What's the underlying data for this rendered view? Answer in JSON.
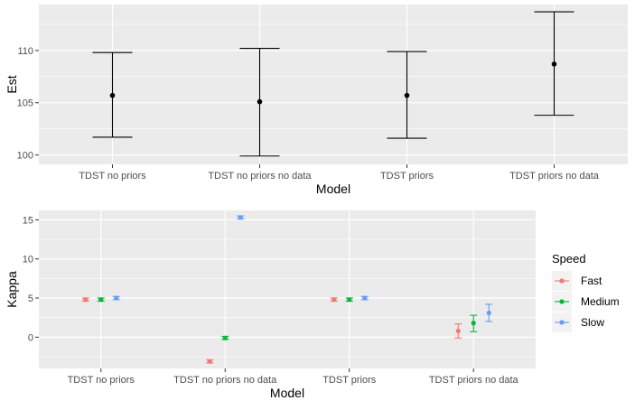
{
  "chart_data": [
    {
      "type": "errorbar",
      "categories": [
        "TDST no priors",
        "TDST no priors no data",
        "TDST priors",
        "TDST priors no data"
      ],
      "estimate": [
        105.7,
        105.1,
        105.7,
        108.7
      ],
      "lower": [
        101.7,
        99.9,
        101.6,
        103.8
      ],
      "upper": [
        109.8,
        110.2,
        109.9,
        113.7
      ],
      "xlabel": "Model",
      "ylabel": "Est",
      "ylim": [
        99.1,
        114.4
      ],
      "yticks": [
        100,
        105,
        110
      ],
      "grid": true,
      "point_color": "#000000"
    },
    {
      "type": "errorbar",
      "categories": [
        "TDST no priors",
        "TDST no priors no data",
        "TDST priors",
        "TDST priors no data"
      ],
      "xlabel": "Model",
      "ylabel": "Kappa",
      "ylim": [
        -4.0,
        16.2
      ],
      "yticks": [
        0,
        5,
        10,
        15
      ],
      "grid": true,
      "legend": {
        "title": "Speed",
        "placement": "right"
      },
      "series": [
        {
          "name": "Fast",
          "color": "#F8766D",
          "estimate": [
            4.8,
            -3.1,
            4.8,
            0.8
          ],
          "lower": [
            4.6,
            -3.3,
            4.6,
            -0.1
          ],
          "upper": [
            5.0,
            -2.9,
            5.0,
            1.7
          ]
        },
        {
          "name": "Medium",
          "color": "#00BA38",
          "estimate": [
            4.8,
            -0.1,
            4.8,
            1.8
          ],
          "lower": [
            4.6,
            -0.3,
            4.6,
            0.7
          ],
          "upper": [
            5.0,
            0.1,
            5.0,
            2.8
          ]
        },
        {
          "name": "Slow",
          "color": "#619CFF",
          "estimate": [
            5.0,
            15.3,
            5.0,
            3.1
          ],
          "lower": [
            4.8,
            15.1,
            4.8,
            2.0
          ],
          "upper": [
            5.2,
            15.5,
            5.2,
            4.2
          ]
        }
      ]
    }
  ]
}
